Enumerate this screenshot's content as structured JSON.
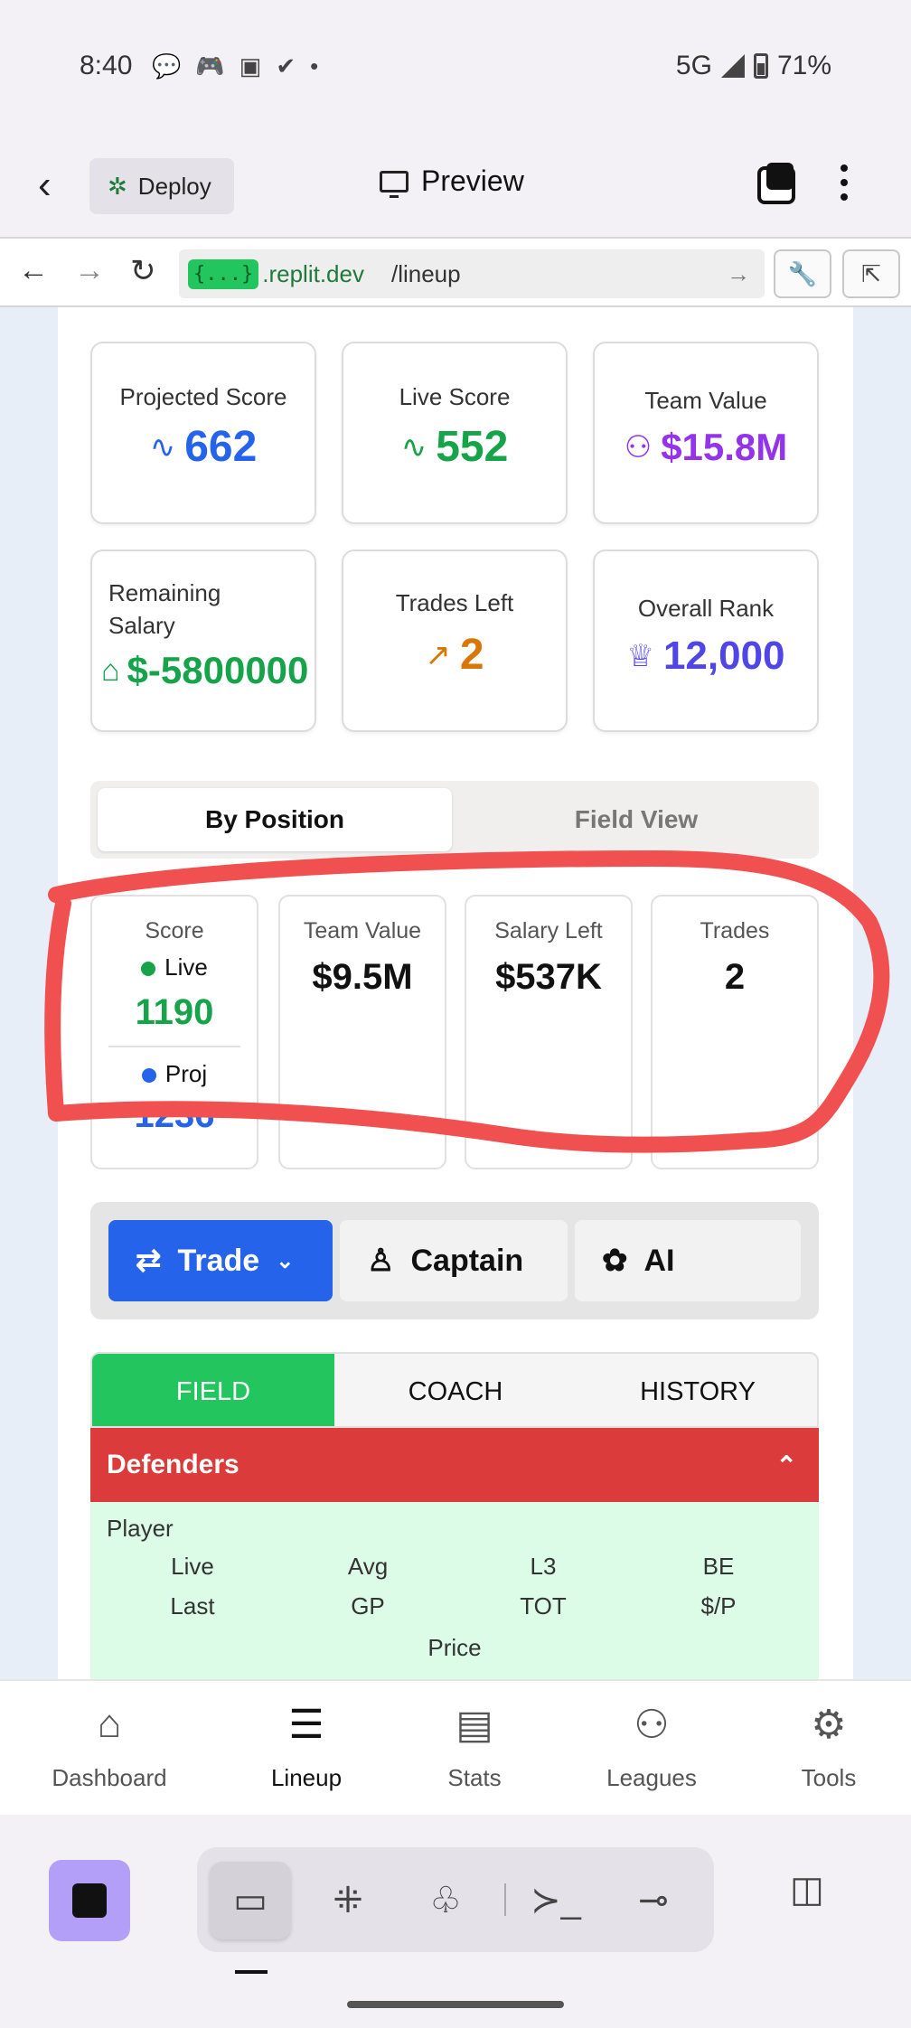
{
  "status_bar": {
    "time": "8:40",
    "icons": [
      "chat-icon",
      "game-icon",
      "cast-icon",
      "check-icon",
      "dot-icon"
    ],
    "network": "5G",
    "battery": "71%"
  },
  "app_header": {
    "deploy_label": "Deploy",
    "preview_label": "Preview"
  },
  "url_bar": {
    "chip": "{...}",
    "host": ".replit.dev",
    "path": "/lineup"
  },
  "stats": [
    {
      "label": "Projected Score",
      "value": "662",
      "icon": "pulse-icon",
      "color": "#2563eb"
    },
    {
      "label": "Live Score",
      "value": "552",
      "icon": "pulse-icon",
      "color": "#16a34a"
    },
    {
      "label": "Team Value",
      "value": "$15.8M",
      "icon": "coins-icon",
      "color": "#9333ea"
    },
    {
      "label": "Remaining Salary",
      "value": "$-5800000",
      "icon": "tag-icon",
      "color": "#16a34a"
    },
    {
      "label": "Trades Left",
      "value": "2",
      "icon": "trending-up-icon",
      "color": "#d97706"
    },
    {
      "label": "Overall Rank",
      "value": "12,000",
      "icon": "trophy-icon",
      "color": "#4f46e5"
    }
  ],
  "view_toggle": {
    "active": "By Position",
    "inactive": "Field View"
  },
  "summary": {
    "score_label": "Score",
    "live_label": "Live",
    "live_value": "1190",
    "proj_label": "Proj",
    "proj_value": "1236",
    "team_value_label": "Team Value",
    "team_value": "$9.5M",
    "salary_left_label": "Salary Left",
    "salary_left": "$537K",
    "trades_label": "Trades",
    "trades": "2"
  },
  "actions": {
    "trade": "Trade",
    "captain": "Captain",
    "ai": "AI"
  },
  "tabs": [
    "FIELD",
    "COACH",
    "HISTORY"
  ],
  "section": {
    "title": "Defenders",
    "header": {
      "player": "Player",
      "row1": [
        "Live",
        "Avg",
        "L3",
        "BE"
      ],
      "row2": [
        "Last",
        "GP",
        "TOT",
        "$/P"
      ],
      "row3": "Price"
    }
  },
  "bottom_nav": [
    "Dashboard",
    "Lineup",
    "Stats",
    "Leagues",
    "Tools"
  ],
  "colors": {
    "primary": "#2563eb",
    "field_green": "#22c55e",
    "defenders_red": "#dc3b3b",
    "annotation_red": "#f05050"
  }
}
